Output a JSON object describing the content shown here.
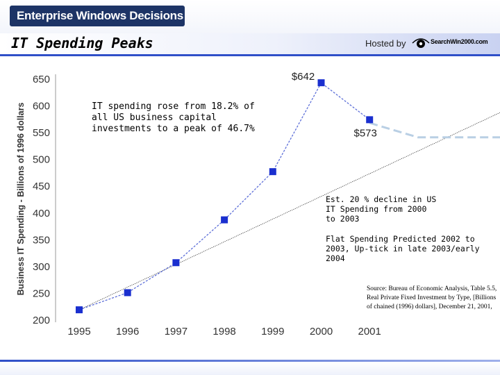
{
  "header": {
    "banner": "Enterprise Windows Decisions",
    "title": "IT Spending Peaks",
    "hosted_by": "Hosted by",
    "sponsor": "SearchWin2000.com"
  },
  "colors": {
    "banner_bg": "#1d3466",
    "accent": "#2f4fc8",
    "series": "#1a2fcf",
    "projection": "#b9cfe4"
  },
  "chart_data": {
    "type": "line",
    "title": "IT Spending Peaks",
    "xlabel": "",
    "ylabel": "Business IT Spending - Billions of 1996 dollars",
    "x": [
      "1995",
      "1996",
      "1997",
      "1998",
      "1999",
      "2000",
      "2001"
    ],
    "yticks": [
      "650",
      "600",
      "550",
      "500",
      "450",
      "400",
      "350",
      "300",
      "250",
      "200"
    ],
    "ylim": [
      200,
      650
    ],
    "series": [
      {
        "name": "Business IT Spending",
        "values": [
          218,
          250,
          306,
          386,
          476,
          642,
          573
        ]
      }
    ],
    "trendline": {
      "from": [
        1995,
        218
      ],
      "to": [
        2003.9,
        595
      ]
    },
    "projection": {
      "points": [
        [
          2001,
          567
        ],
        [
          2002,
          540
        ],
        [
          2003,
          540
        ],
        [
          2003.9,
          540
        ]
      ]
    },
    "data_labels": [
      {
        "x": 2000,
        "y": 642,
        "text": "$642"
      },
      {
        "x": 2001,
        "y": 573,
        "text": "$573"
      }
    ],
    "annotations": {
      "rise": "IT spending rose from 18.2% of all US business capital investments to a peak of 46.7%",
      "decline": "Est. 20 % decline in US IT Spending from 2000 to 2003",
      "flat": "Flat Spending Predicted 2002 to 2003, Up-tick in late 2003/early 2004"
    },
    "source": "Source: Bureau of Economic Analysis, Table 5.5, Real Private Fixed Investment by Type, [Billions of chained (1996) dollars], December 21, 2001,"
  }
}
